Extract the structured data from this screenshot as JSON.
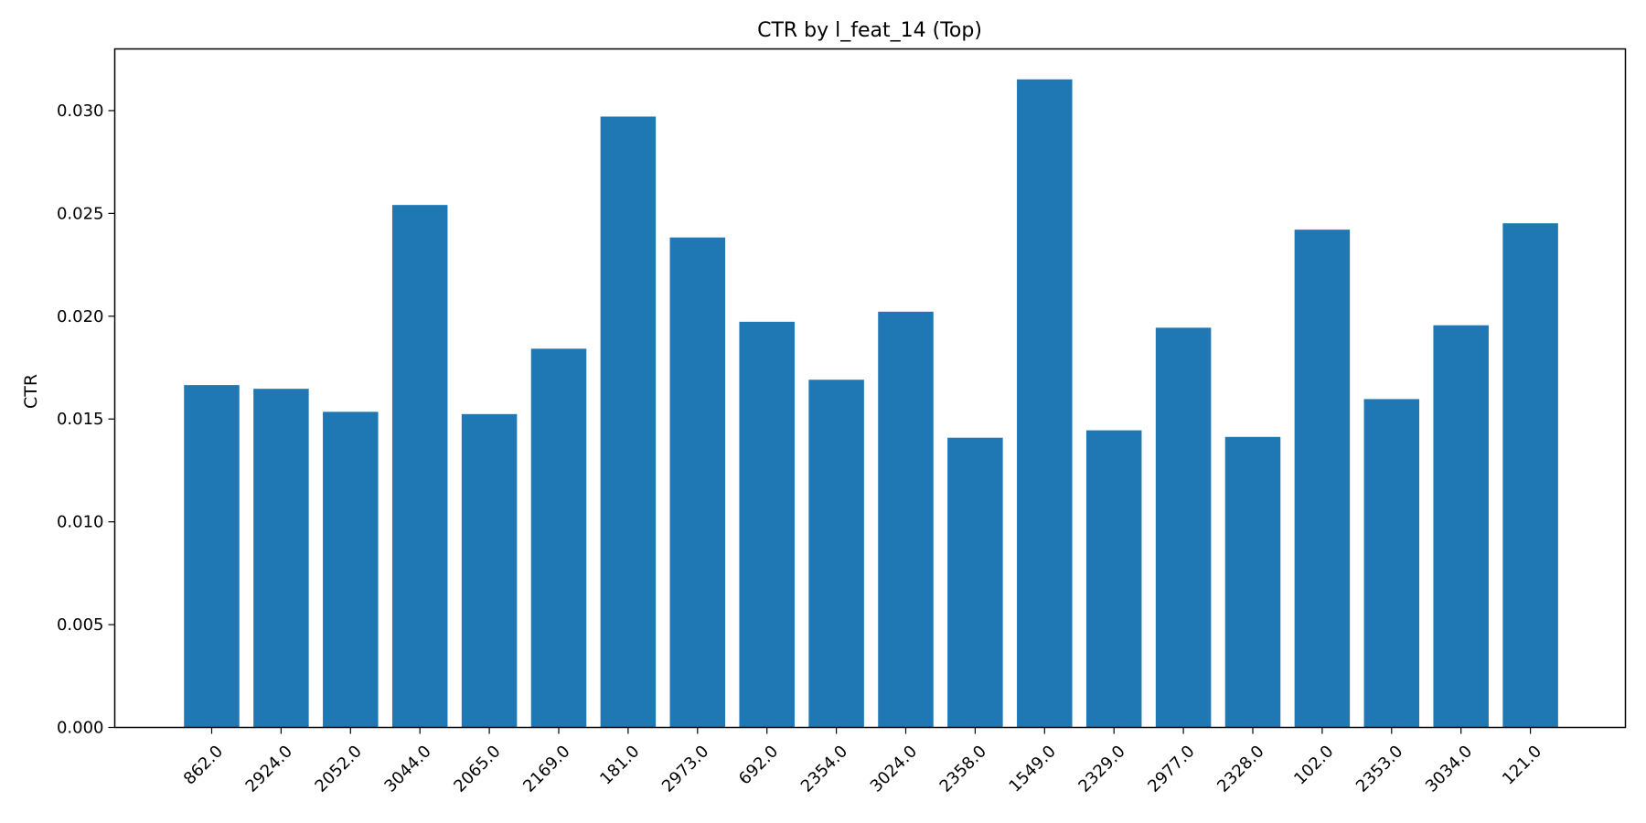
{
  "chart_data": {
    "type": "bar",
    "title": "CTR by l_feat_14 (Top)",
    "xlabel": "",
    "ylabel": "CTR",
    "categories": [
      "862.0",
      "2924.0",
      "2052.0",
      "3044.0",
      "2065.0",
      "2169.0",
      "181.0",
      "2973.0",
      "692.0",
      "2354.0",
      "3024.0",
      "2358.0",
      "1549.0",
      "2329.0",
      "2977.0",
      "2328.0",
      "102.0",
      "2353.0",
      "3034.0",
      "121.0"
    ],
    "values": [
      0.01665,
      0.01647,
      0.01535,
      0.02541,
      0.01524,
      0.01842,
      0.02971,
      0.02383,
      0.01973,
      0.01691,
      0.02022,
      0.01409,
      0.03152,
      0.01445,
      0.01944,
      0.01413,
      0.02421,
      0.01597,
      0.01956,
      0.02452
    ],
    "ylim": [
      0,
      0.033
    ],
    "yticks": [
      "0.000",
      "0.005",
      "0.010",
      "0.015",
      "0.020",
      "0.025",
      "0.030"
    ],
    "grid": false,
    "legend": "none",
    "bar_color": "#1f77b4"
  }
}
